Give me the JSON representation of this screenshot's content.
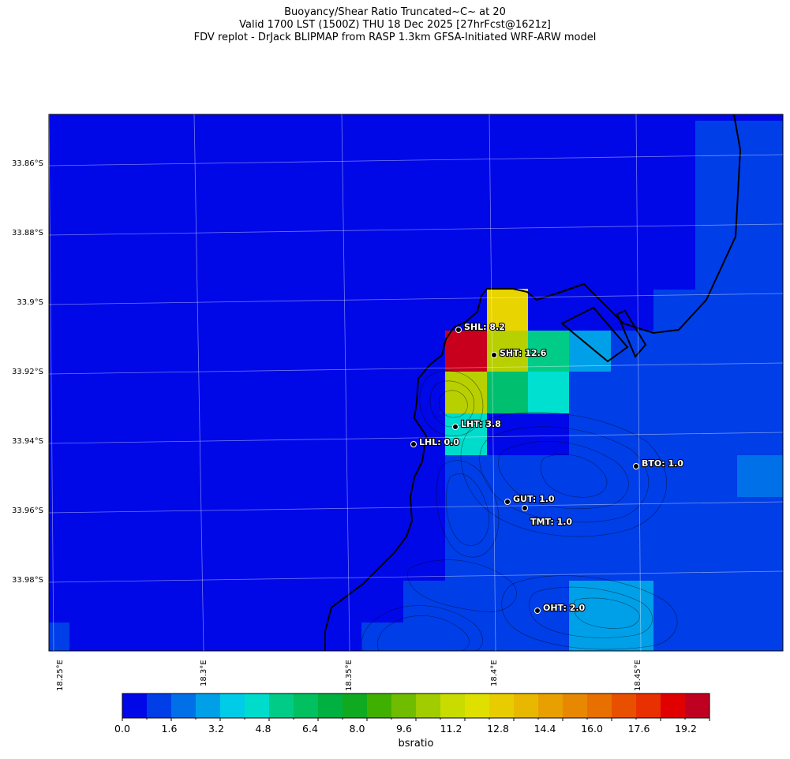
{
  "title": {
    "line1": "Buoyancy/Shear Ratio Truncated~C~    at 20",
    "line2": "Valid 1700 LST (1500Z) THU 18 Dec 2025 [27hrFcst@1621z]",
    "line3": "FDV replot - DrJack BLIPMAP from RASP 1.3km GFSA-Initiated WRF-ARW model"
  },
  "lat_ticks": [
    "33.86°S",
    "33.88°S",
    "33.9°S",
    "33.92°S",
    "33.94°S",
    "33.96°S",
    "33.98°S"
  ],
  "lon_ticks": [
    "18.25°E",
    "18.3°E",
    "18.35°E",
    "18.4°E",
    "18.45°E"
  ],
  "colorbar": {
    "label": "bsratio",
    "ticks": [
      "0.0",
      "1.6",
      "3.2",
      "4.8",
      "6.4",
      "8.0",
      "9.6",
      "11.2",
      "12.8",
      "14.4",
      "16.0",
      "17.6",
      "19.2"
    ],
    "colors": [
      "#0008e8",
      "#003ee8",
      "#0070e8",
      "#00a0e8",
      "#00cce8",
      "#00dccc",
      "#00cc88",
      "#00c060",
      "#00b040",
      "#10aa20",
      "#40b000",
      "#70bc00",
      "#a0cc00",
      "#c8dc00",
      "#e0e000",
      "#e8cc00",
      "#e8b800",
      "#e8a000",
      "#e88800",
      "#e87000",
      "#e85000",
      "#e83000",
      "#e00000",
      "#c00020"
    ]
  },
  "stations": [
    {
      "label": "SHL: 8.2"
    },
    {
      "label": "SHT: 12.6"
    },
    {
      "label": "LHT: 3.8"
    },
    {
      "label": "LHL: 0.0"
    },
    {
      "label": "BTO: 1.0"
    },
    {
      "label": "GUT: 1.0"
    },
    {
      "label": "TMT: 1.0"
    },
    {
      "label": "OHT: 2.0"
    }
  ],
  "colors": {
    "deep_blue": "#0008e8",
    "mid_blue": "#003ee8",
    "blue2": "#0070e8",
    "sky": "#00a0e8",
    "turquoise": "#00dccc",
    "teal": "#00e0d0",
    "green": "#00c070",
    "yellow": "#e8d400",
    "olive": "#b8d000",
    "red": "#c8001e"
  }
}
